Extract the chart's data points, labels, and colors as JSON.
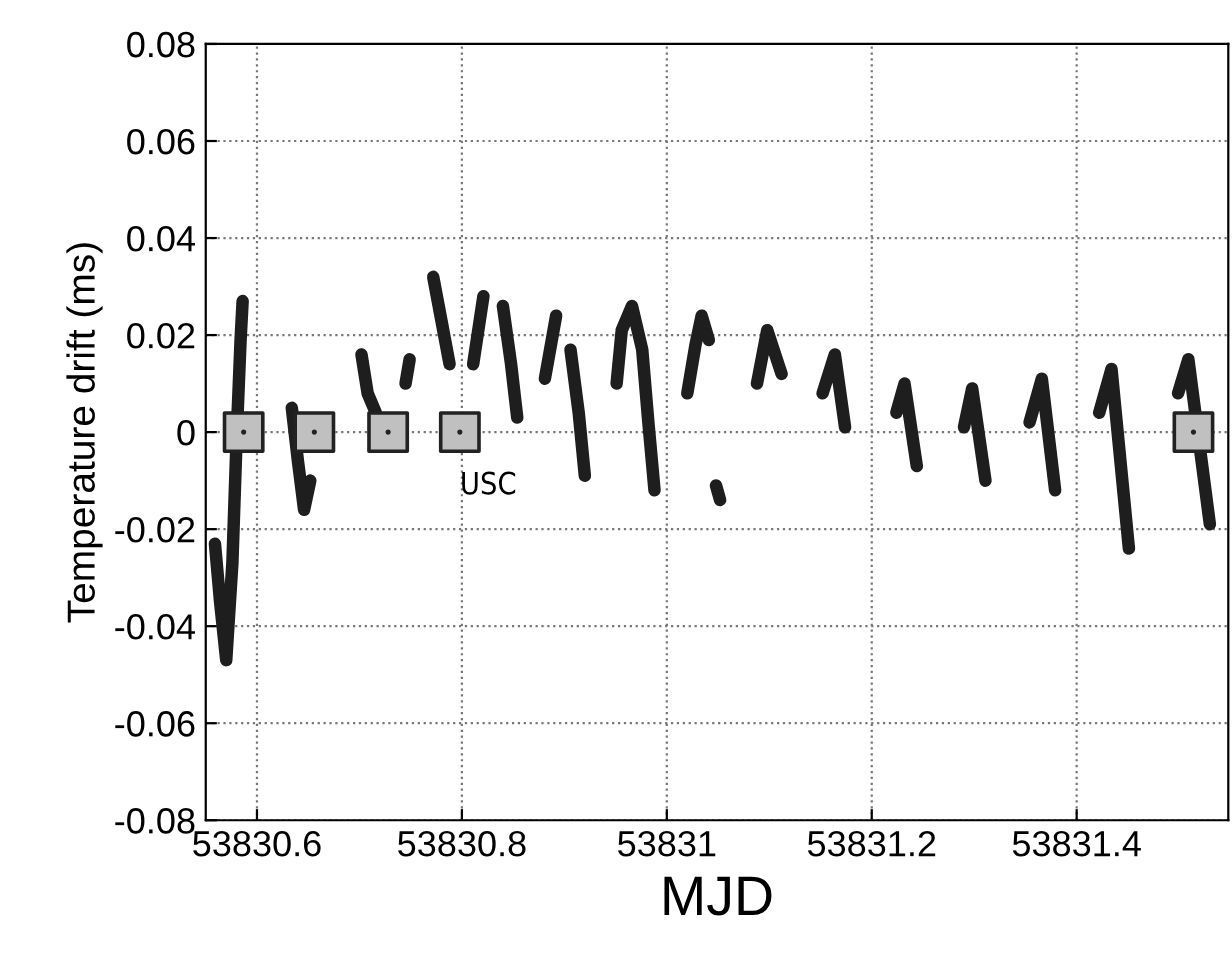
{
  "chart_data": {
    "type": "line",
    "xlabel": "MJD",
    "ylabel": "Temperature drift (ms)",
    "xlim": [
      53830.55,
      53831.548
    ],
    "ylim": [
      -0.08,
      0.08
    ],
    "xticks": [
      53830.6,
      53830.8,
      53831,
      53831.2,
      53831.4
    ],
    "yticks": [
      -0.08,
      -0.06,
      -0.04,
      -0.02,
      0,
      0.02,
      0.04,
      0.06,
      0.08
    ],
    "grid": true,
    "line_style": "solid",
    "annotations": [
      {
        "text": "USC",
        "x": 53830.798,
        "y": 0
      }
    ],
    "series": [
      {
        "color": "#1e1e1e",
        "x": [
          53830.559,
          53830.564,
          53830.57,
          53830.576,
          53830.58,
          53830.584,
          53830.586
        ],
        "values": [
          -0.023,
          -0.035,
          -0.047,
          -0.027,
          -0.002,
          0.019,
          0.027
        ]
      },
      {
        "color": "#1e1e1e",
        "x": [
          53830.634,
          53830.64,
          53830.646,
          53830.652
        ],
        "values": [
          0.005,
          -0.006,
          -0.016,
          -0.01
        ]
      },
      {
        "color": "#1e1e1e",
        "x": [
          53830.702,
          53830.708,
          53830.716
        ],
        "values": [
          0.016,
          0.008,
          0.004
        ]
      },
      {
        "color": "#1e1e1e",
        "x": [
          53830.745,
          53830.749
        ],
        "values": [
          0.01,
          0.015
        ]
      },
      {
        "color": "#1e1e1e",
        "x": [
          53830.772,
          53830.78,
          53830.788
        ],
        "values": [
          0.032,
          0.023,
          0.014
        ]
      },
      {
        "color": "#1e1e1e",
        "x": [
          53830.811,
          53830.821
        ],
        "values": [
          0.014,
          0.028
        ]
      },
      {
        "color": "#1e1e1e",
        "x": [
          53830.84,
          53830.848,
          53830.854
        ],
        "values": [
          0.026,
          0.014,
          0.003
        ]
      },
      {
        "color": "#1e1e1e",
        "x": [
          53830.881,
          53830.892
        ],
        "values": [
          0.011,
          0.024
        ]
      },
      {
        "color": "#1e1e1e",
        "x": [
          53830.906,
          53830.914,
          53830.92
        ],
        "values": [
          0.017,
          0.004,
          -0.009
        ]
      },
      {
        "color": "#1e1e1e",
        "x": [
          53830.951,
          53830.956,
          53830.966,
          53830.976,
          53830.982,
          53830.988
        ],
        "values": [
          0.01,
          0.021,
          0.026,
          0.017,
          0.002,
          -0.012
        ]
      },
      {
        "color": "#1e1e1e",
        "x": [
          53831.02,
          53831.028,
          53831.034,
          53831.041
        ],
        "values": [
          0.008,
          0.018,
          0.024,
          0.019
        ]
      },
      {
        "color": "#1e1e1e",
        "x": [
          53831.048,
          53831.052
        ],
        "values": [
          -0.011,
          -0.014
        ]
      },
      {
        "color": "#1e1e1e",
        "x": [
          53831.088,
          53831.098,
          53831.112
        ],
        "values": [
          0.01,
          0.021,
          0.012
        ]
      },
      {
        "color": "#1e1e1e",
        "x": [
          53831.152,
          53831.164,
          53831.174
        ],
        "values": [
          0.008,
          0.016,
          0.001
        ]
      },
      {
        "color": "#1e1e1e",
        "x": [
          53831.224,
          53831.232,
          53831.244
        ],
        "values": [
          0.004,
          0.01,
          -0.007
        ]
      },
      {
        "color": "#1e1e1e",
        "x": [
          53831.29,
          53831.298,
          53831.311
        ],
        "values": [
          0.001,
          0.009,
          -0.01
        ]
      },
      {
        "color": "#1e1e1e",
        "x": [
          53831.354,
          53831.366,
          53831.379
        ],
        "values": [
          0.002,
          0.011,
          -0.012
        ]
      },
      {
        "color": "#1e1e1e",
        "x": [
          53831.422,
          53831.434,
          53831.451
        ],
        "values": [
          0.004,
          0.013,
          -0.024
        ]
      },
      {
        "color": "#1e1e1e",
        "x": [
          53831.499,
          53831.509,
          53831.53
        ],
        "values": [
          0.008,
          0.015,
          -0.019
        ]
      },
      {
        "type": "scatter",
        "color": "#c0c0c0",
        "marker": "square",
        "x": [
          53830.587,
          53830.656,
          53830.728,
          53830.798,
          53831.514
        ],
        "values": [
          0,
          0,
          0,
          0,
          0
        ]
      }
    ]
  }
}
